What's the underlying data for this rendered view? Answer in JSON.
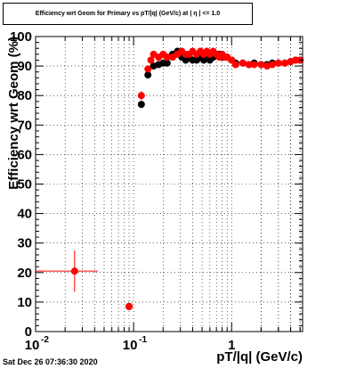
{
  "chart_data": {
    "type": "scatter",
    "title": "Efficiency wrt Geom for Primary vs pT/|q| (GeV/c) at | η | <= 1.0",
    "xlabel": "pT/|q| (GeV/c)",
    "ylabel": "Efficiency wrt Geom (%)",
    "x_scale": "log",
    "xlim": [
      0.01,
      5.3
    ],
    "ylim": [
      0,
      100
    ],
    "y_ticks": [
      "0",
      "10",
      "20",
      "30",
      "40",
      "50",
      "60",
      "70",
      "80",
      "90",
      "100"
    ],
    "x_ticks": [
      {
        "value": 0.01,
        "label": "10",
        "exp": "-2"
      },
      {
        "value": 0.1,
        "label": "10",
        "exp": "-1"
      },
      {
        "value": 1,
        "label": "1",
        "exp": ""
      }
    ],
    "grid": true,
    "series": [
      {
        "color": "#000000",
        "x": [
          0.09,
          0.12,
          0.14,
          0.16,
          0.18,
          0.2,
          0.22,
          0.25,
          0.28,
          0.31,
          0.34,
          0.37,
          0.4,
          0.44,
          0.48,
          0.52,
          0.56,
          0.6,
          0.65,
          0.7,
          0.75,
          0.8,
          0.85,
          0.9,
          1.0,
          1.1,
          1.3,
          1.5,
          1.7,
          2.0,
          2.3,
          2.6,
          3.0,
          3.5,
          4.0,
          4.5,
          5.0
        ],
        "y": [
          8.5,
          77,
          87,
          90,
          90.5,
          91,
          91,
          94,
          95,
          93,
          92,
          93,
          92,
          92,
          93,
          92,
          94,
          92,
          93,
          94,
          94,
          93,
          93,
          93,
          92,
          91,
          91,
          90.5,
          91,
          90.5,
          90.5,
          91,
          91,
          91,
          91.5,
          92,
          92
        ]
      },
      {
        "color": "#ff0000",
        "x": [
          0.025,
          0.09,
          0.12,
          0.14,
          0.15,
          0.16,
          0.18,
          0.2,
          0.22,
          0.25,
          0.28,
          0.31,
          0.34,
          0.37,
          0.4,
          0.44,
          0.48,
          0.52,
          0.56,
          0.6,
          0.65,
          0.7,
          0.75,
          0.8,
          0.85,
          0.9,
          1.0,
          1.1,
          1.3,
          1.5,
          1.7,
          2.0,
          2.3,
          2.6,
          3.0,
          3.5,
          4.0,
          4.5,
          5.0
        ],
        "y": [
          20.5,
          8.5,
          80,
          89,
          92,
          94,
          93,
          94,
          93,
          93,
          94,
          95,
          94,
          94,
          95,
          94,
          95,
          94,
          95,
          94,
          95,
          94,
          93,
          94,
          93,
          93,
          92,
          90.5,
          91,
          90.5,
          90.5,
          90.5,
          90,
          90.5,
          91,
          91,
          91.5,
          92,
          92
        ],
        "xerr_low": [
          0.015,
          0.005,
          0.005,
          0,
          0,
          0,
          0,
          0,
          0,
          0,
          0,
          0,
          0,
          0,
          0,
          0,
          0,
          0,
          0,
          0,
          0,
          0,
          0,
          0,
          0,
          0,
          0,
          0,
          0,
          0,
          0,
          0,
          0,
          0,
          0,
          0,
          0,
          0,
          0
        ],
        "xerr_high": [
          0.018,
          0.006,
          0.005,
          0,
          0,
          0,
          0,
          0,
          0,
          0,
          0,
          0,
          0,
          0,
          0,
          0,
          0,
          0,
          0,
          0,
          0,
          0,
          0,
          0,
          0,
          0,
          0,
          0,
          0,
          0,
          0,
          0,
          0,
          0,
          0,
          0,
          0,
          0,
          0
        ],
        "yerr": [
          7,
          1.2,
          1.5,
          0,
          0,
          0,
          0,
          0,
          0,
          0,
          0,
          0,
          0,
          0,
          0,
          0,
          0,
          0,
          0,
          0,
          0,
          0,
          0,
          0,
          0,
          0,
          0,
          0,
          0,
          0,
          0,
          0,
          0,
          0,
          0,
          0,
          0,
          0,
          0
        ]
      }
    ]
  },
  "datestamp": "Sat Dec 26 07:36:30 2020"
}
